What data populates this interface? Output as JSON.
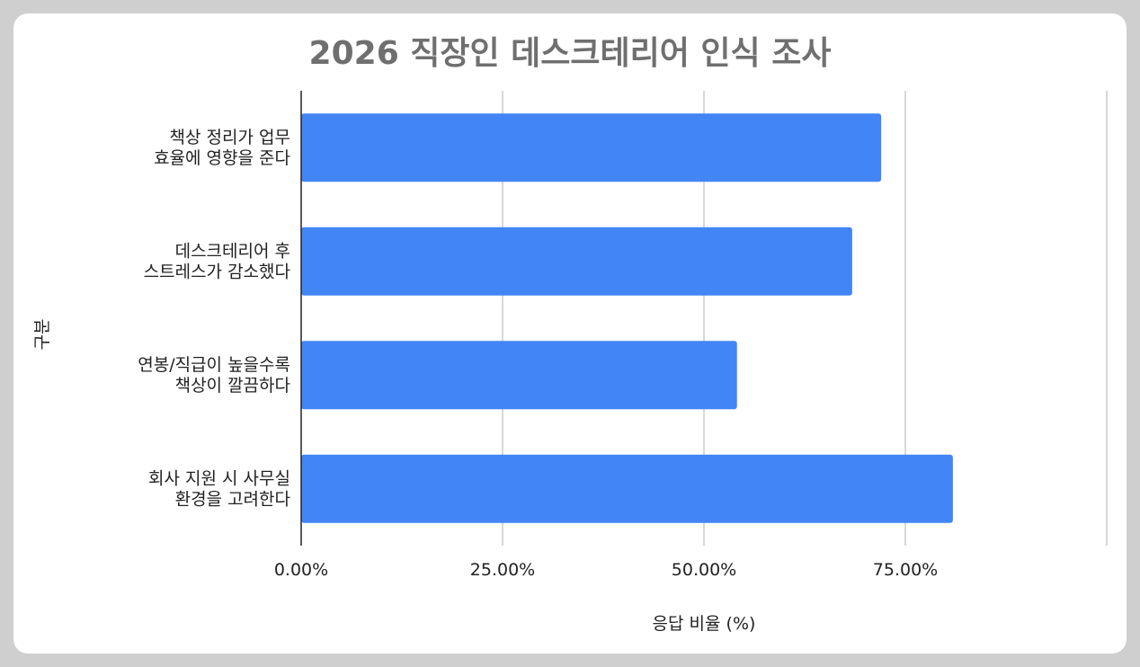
{
  "chart_data": {
    "type": "bar",
    "orientation": "horizontal",
    "title": "2026 직장인 데스크테리어 인식 조사",
    "xlabel": "응답 비율 (%)",
    "ylabel": "구분",
    "xlim": [
      0,
      1
    ],
    "x_ticks": [
      "0.00%",
      "25.00%",
      "50.00%",
      "75.00%"
    ],
    "grid": true,
    "legend": "none",
    "bar_color": "#4285f4",
    "categories": [
      [
        "책상 정리가 업무",
        "효율에 영향을 준다"
      ],
      [
        "데스크테리어 후",
        "스트레스가 감소했다"
      ],
      [
        "연봉/직급이 높을수록",
        "책상이 깔끔하다"
      ],
      [
        "회사 지원 시 사무실",
        "환경을 고려한다"
      ]
    ],
    "values": [
      0.72,
      0.684,
      0.541,
      0.809
    ]
  }
}
